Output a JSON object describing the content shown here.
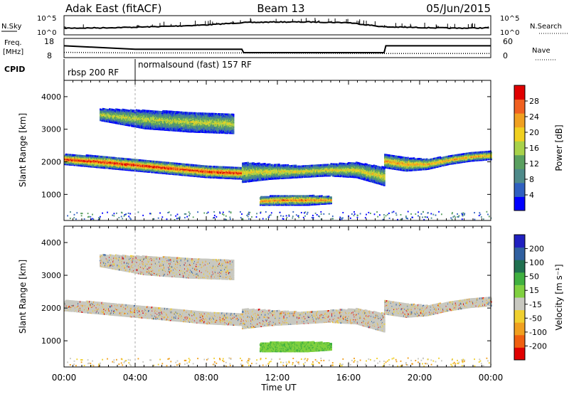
{
  "header": {
    "station": "Adak East (fitACF)",
    "beam": "Beam 13",
    "date": "05/Jun/2015"
  },
  "strip_noise": {
    "left_label": "N.Sky",
    "right_label": "N.Search",
    "left_ticks": [
      "10^5",
      "10^0"
    ],
    "right_ticks": [
      "10^5",
      "10^0"
    ]
  },
  "strip_freq": {
    "left_label_1": "Freq.",
    "left_label_2": "[MHz]",
    "right_label": "Nave",
    "left_ticks": [
      "18",
      "8"
    ],
    "right_ticks": [
      "60",
      "0"
    ]
  },
  "strip_cpid": {
    "label": "CPID",
    "segments": [
      {
        "start_hour": 0.0,
        "end_hour": 4.0,
        "text": "rbsp 200 RF"
      },
      {
        "start_hour": 4.0,
        "end_hour": 24.0,
        "text": "normalsound (fast) 157 RF"
      }
    ]
  },
  "axes": {
    "x_ticks": [
      "00:00",
      "04:00",
      "08:00",
      "12:00",
      "16:00",
      "20:00",
      "00:00"
    ],
    "x_tick_hours": [
      0,
      4,
      8,
      12,
      16,
      20,
      24
    ],
    "xlabel": "Time UT",
    "ylabel": "Slant Range [km]",
    "y_ticks": [
      "1000",
      "2000",
      "3000",
      "4000"
    ],
    "y_tick_values": [
      1000,
      2000,
      3000,
      4000
    ],
    "ylim": [
      200,
      4500
    ],
    "xlim": [
      0,
      24
    ]
  },
  "colorbar_power": {
    "label": "Power [dB]",
    "ticks": [
      "4",
      "8",
      "12",
      "16",
      "20",
      "24",
      "28"
    ],
    "colors": [
      "#0000ff",
      "#3060c0",
      "#4e8a8a",
      "#5aa060",
      "#a8d24a",
      "#f0d020",
      "#f0a020",
      "#f06020",
      "#e00000"
    ]
  },
  "colorbar_velocity": {
    "label": "Velocity [m s⁻¹]",
    "ticks": [
      "200",
      "100",
      "50",
      "15",
      "-15",
      "-50",
      "-100",
      "-200"
    ],
    "colors": [
      "#2020c0",
      "#3060a0",
      "#207050",
      "#40b040",
      "#80d040",
      "#c8c8c0",
      "#f0d030",
      "#f0a020",
      "#f06010",
      "#e00000"
    ]
  },
  "chart_data": {
    "type": "heatmap",
    "x_units": "hour UT",
    "y_units": "slant range km",
    "noise_sky_level": [
      [
        0,
        1.6
      ],
      [
        2,
        1.7
      ],
      [
        4,
        1.9
      ],
      [
        6,
        2.2
      ],
      [
        8,
        2.6
      ],
      [
        10,
        3.3
      ],
      [
        12,
        3.5
      ],
      [
        14,
        3.5
      ],
      [
        16,
        3.3
      ],
      [
        18,
        2.0
      ],
      [
        20,
        1.8
      ],
      [
        22,
        1.6
      ],
      [
        24,
        1.7
      ]
    ],
    "frequency_mhz": [
      [
        0,
        14.5
      ],
      [
        4,
        12.5
      ],
      [
        10,
        12.5
      ],
      [
        10.1,
        10.5
      ],
      [
        18,
        10.5
      ],
      [
        18.1,
        14.5
      ],
      [
        24,
        14.5
      ]
    ],
    "nave": [
      [
        0,
        16
      ],
      [
        4,
        14
      ],
      [
        10,
        14
      ],
      [
        18,
        12
      ],
      [
        24,
        12
      ]
    ],
    "power_bands": [
      {
        "start_hour": 0,
        "end_hour": 10,
        "range_start": [
          2200,
          2150,
          2050,
          1950,
          1850,
          1800
        ],
        "range_end": [
          1900,
          1800,
          1700,
          1600,
          1500,
          1450
        ],
        "peak_db": 28
      },
      {
        "start_hour": 10,
        "end_hour": 18,
        "range_start": [
          1950,
          1900,
          1850,
          1900,
          1950,
          1800
        ],
        "range_end": [
          1350,
          1450,
          1500,
          1550,
          1500,
          1250
        ],
        "peak_db": 18
      },
      {
        "start_hour": 18,
        "end_hour": 24,
        "range_start": [
          2200,
          2100,
          2050,
          2150,
          2250,
          2300
        ],
        "range_end": [
          1800,
          1700,
          1750,
          1900,
          2000,
          2050
        ],
        "peak_db": 22
      },
      {
        "start_hour": 11,
        "end_hour": 15,
        "range_start": [
          900,
          950,
          950,
          900
        ],
        "range_end": [
          650,
          650,
          650,
          700
        ],
        "peak_db": 24
      },
      {
        "start_hour": 2,
        "end_hour": 9.5,
        "range_start": [
          3600,
          3550,
          3500,
          3450
        ],
        "range_end": [
          3250,
          3000,
          2900,
          2850
        ],
        "peak_db": 16
      }
    ],
    "velocity_bands": [
      {
        "start_hour": 0,
        "end_hour": 10,
        "velocity": "low",
        "sign": "mixed"
      },
      {
        "start_hour": 11,
        "end_hour": 15,
        "velocity": 40,
        "sign": "positive"
      },
      {
        "start_hour": 10,
        "end_hour": 24,
        "velocity": "low",
        "sign": "mixed"
      }
    ]
  }
}
